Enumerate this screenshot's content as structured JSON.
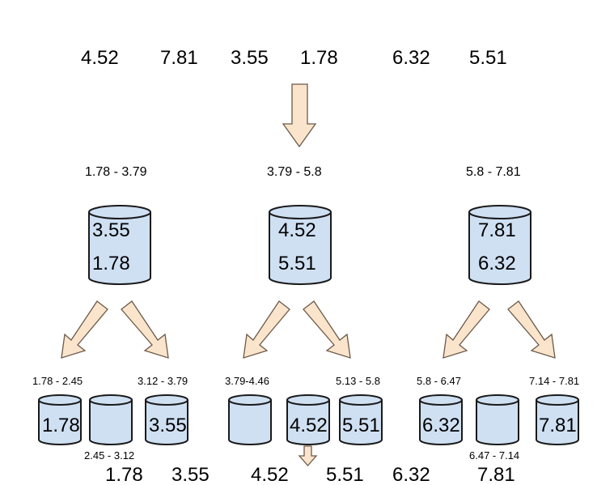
{
  "input_values": [
    "4.52",
    "7.81",
    "3.55",
    "1.78",
    "6.32",
    "5.51"
  ],
  "buckets": [
    {
      "range": "1.78 - 3.79",
      "values": [
        "3.55",
        "1.78"
      ]
    },
    {
      "range": "3.79 - 5.8",
      "values": [
        "4.52",
        "5.51"
      ]
    },
    {
      "range": "5.8 - 7.81",
      "values": [
        "7.81",
        "6.32"
      ]
    }
  ],
  "sub_buckets": [
    {
      "range": "1.78 - 2.45",
      "value": "1.78"
    },
    {
      "range": "2.45 - 3.12",
      "value": ""
    },
    {
      "range": "3.12 - 3.79",
      "value": "3.55"
    },
    {
      "range": "3.79-4.46",
      "value": ""
    },
    {
      "range": "",
      "value": "4.52"
    },
    {
      "range": "5.13 - 5.8",
      "value": "5.51"
    },
    {
      "range": "5.8 - 6.47",
      "value": "6.32"
    },
    {
      "range": "6.47 - 7.14",
      "value": ""
    },
    {
      "range": "7.14 - 7.81",
      "value": "7.81"
    }
  ],
  "sorted_values": [
    "1.78",
    "3.55",
    "4.52",
    "5.51",
    "6.32",
    "7.81"
  ],
  "colors": {
    "arrow_fill": "#fbe4cc",
    "bucket_fill": "#cfe0f3"
  }
}
